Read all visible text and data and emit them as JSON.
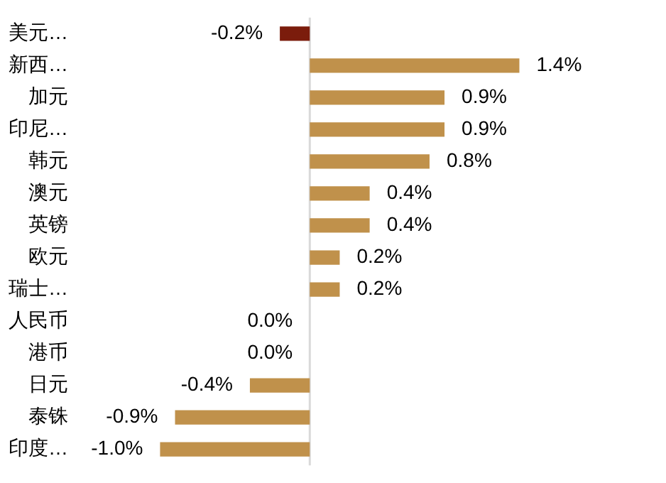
{
  "chart_data": {
    "type": "bar",
    "orientation": "horizontal",
    "categories": [
      "美元…",
      "新西…",
      "加元",
      "印尼…",
      "韩元",
      "澳元",
      "英镑",
      "欧元",
      "瑞士…",
      "人民币",
      "港币",
      "日元",
      "泰铢",
      "印度…"
    ],
    "values": [
      -0.2,
      1.4,
      0.9,
      0.9,
      0.8,
      0.4,
      0.4,
      0.2,
      0.2,
      0.0,
      0.0,
      -0.4,
      -0.9,
      -1.0
    ],
    "colors": [
      "#7b1c0c",
      "#c0914b",
      "#c0914b",
      "#c0914b",
      "#c0914b",
      "#c0914b",
      "#c0914b",
      "#c0914b",
      "#c0914b",
      "#c0914b",
      "#c0914b",
      "#c0914b",
      "#c0914b",
      "#c0914b"
    ],
    "value_labels": [
      "-0.2%",
      "1.4%",
      "0.9%",
      "0.9%",
      "0.8%",
      "0.4%",
      "0.4%",
      "0.2%",
      "0.2%",
      "0.0%",
      "0.0%",
      "-0.4%",
      "-0.9%",
      "-1.0%"
    ],
    "ref_lines": [
      {
        "axis": "x",
        "value": 0,
        "color": "#d9d9d9"
      }
    ],
    "tick_labels": "y"
  }
}
